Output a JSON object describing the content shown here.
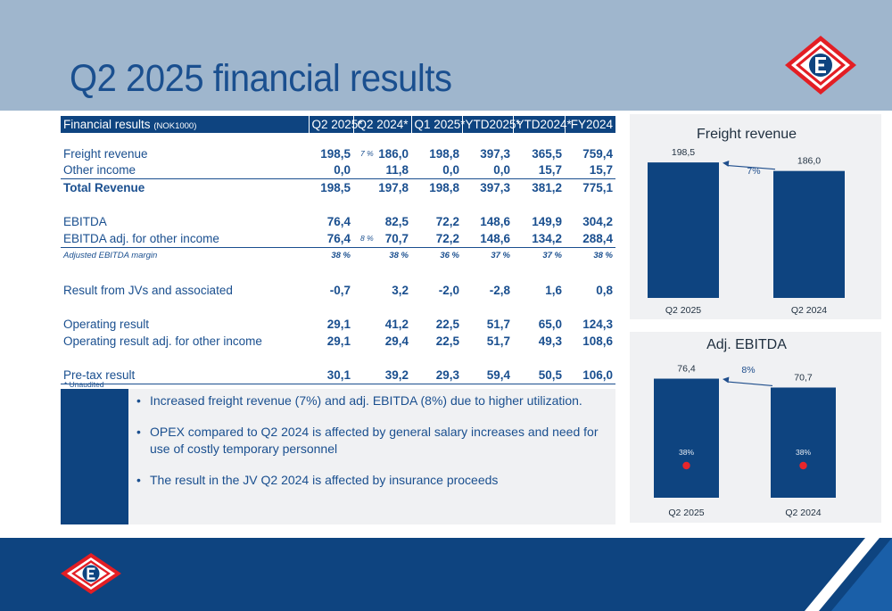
{
  "title": "Q2 2025 financial results",
  "table": {
    "header": {
      "label": "Financial results",
      "unit": "(NOK1000)",
      "columns": [
        "Q2 2025*",
        "Q2 2024*",
        "Q1 2025*",
        "YTD2025*",
        "YTD2024*",
        "FY2024"
      ]
    },
    "rows": {
      "freight_revenue": {
        "label": "Freight revenue",
        "values": [
          "198,5",
          "186,0",
          "198,8",
          "397,3",
          "365,5",
          "759,4"
        ],
        "change": "7 %"
      },
      "other_income": {
        "label": "Other income",
        "values": [
          "0,0",
          "11,8",
          "0,0",
          "0,0",
          "15,7",
          "15,7"
        ]
      },
      "total_revenue": {
        "label": "Total Revenue",
        "values": [
          "198,5",
          "197,8",
          "198,8",
          "397,3",
          "381,2",
          "775,1"
        ]
      },
      "ebitda": {
        "label": "EBITDA",
        "values": [
          "76,4",
          "82,5",
          "72,2",
          "148,6",
          "149,9",
          "304,2"
        ]
      },
      "ebitda_adj": {
        "label": "EBITDA adj. for other income",
        "values": [
          "76,4",
          "70,7",
          "72,2",
          "148,6",
          "134,2",
          "288,4"
        ],
        "change": "8 %"
      },
      "adj_margin": {
        "label": "Adjusted EBITDA margin",
        "values": [
          "38 %",
          "38 %",
          "36 %",
          "37 %",
          "37 %",
          "38 %"
        ]
      },
      "jv_result": {
        "label": "Result from JVs and associated",
        "values": [
          "-0,7",
          "3,2",
          "-2,0",
          "-2,8",
          "1,6",
          "0,8"
        ]
      },
      "operating_result": {
        "label": "Operating result",
        "values": [
          "29,1",
          "41,2",
          "22,5",
          "51,7",
          "65,0",
          "124,3"
        ]
      },
      "operating_adj": {
        "label": "Operating result adj. for other income",
        "values": [
          "29,1",
          "29,4",
          "22,5",
          "51,7",
          "49,3",
          "108,6"
        ]
      },
      "pretax": {
        "label": "Pre-tax result",
        "values": [
          "30,1",
          "39,2",
          "29,3",
          "59,4",
          "50,5",
          "106,0"
        ]
      }
    },
    "footnote": "* Unaudited"
  },
  "bullets": [
    "Increased freight revenue (7%) and adj. EBITDA (8%) due to higher utilization.",
    "OPEX compared to Q2 2024 is affected by general salary increases and need for use of costly temporary personnel",
    "The result in the JV Q2 2024 is affected by insurance proceeds"
  ],
  "colors": {
    "header_band": "#9fb6cd",
    "navy": "#0e4480",
    "title_blue": "#1a4f8f",
    "panel_gray": "#f0f1f3",
    "marker_red": "#e8262b",
    "logo_red": "#e31e24"
  },
  "icons": {
    "logo": "diamond-e-logo"
  },
  "chart_data": [
    {
      "type": "bar",
      "title": "Freight revenue",
      "categories": [
        "Q2 2025",
        "Q2 2024"
      ],
      "values": [
        198.5,
        186.0
      ],
      "value_labels": [
        "198,5",
        "186,0"
      ],
      "ylim": [
        0,
        230
      ],
      "change_label": "7%",
      "grid": false
    },
    {
      "type": "bar",
      "title": "Adj. EBITDA",
      "categories": [
        "Q2 2025",
        "Q2 2024"
      ],
      "values": [
        76.4,
        70.7
      ],
      "value_labels": [
        "76,4",
        "70,7"
      ],
      "ylim": [
        0,
        87
      ],
      "change_label": "8%",
      "margin_labels": [
        "38%",
        "38%"
      ],
      "margin_values": [
        38,
        38
      ],
      "grid": false
    }
  ]
}
